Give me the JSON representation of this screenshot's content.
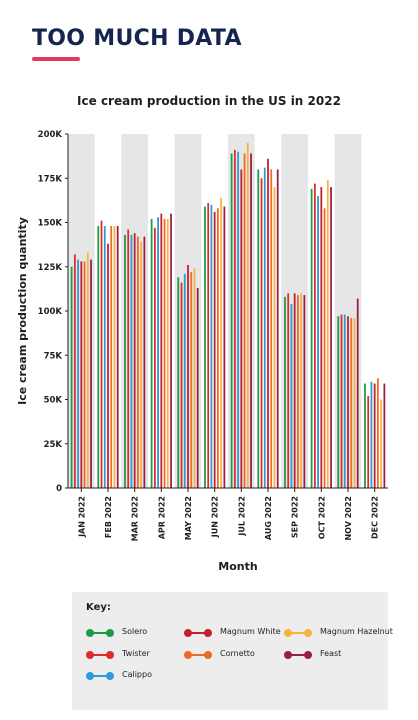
{
  "heading": "TOO MUCH DATA",
  "chart_data": {
    "type": "bar",
    "title": "Ice cream production in the US in 2022",
    "xlabel": "Month",
    "ylabel": "Ice cream production quantity",
    "ylim": [
      0,
      200000
    ],
    "ytick_labels": [
      "0",
      "25K",
      "50K",
      "75K",
      "100K",
      "125K",
      "150K",
      "175K",
      "200K"
    ],
    "yticks": [
      0,
      25000,
      50000,
      75000,
      100000,
      125000,
      150000,
      175000,
      200000
    ],
    "categories": [
      "JAN 2022",
      "FEB 2022",
      "MAR 2022",
      "APR 2022",
      "MAY 2022",
      "JUN 2022",
      "JUL 2022",
      "AUG 2022",
      "SEP 2022",
      "OCT 2022",
      "NOV 2022",
      "DEC 2022"
    ],
    "alternating_column_shading": true,
    "series": [
      {
        "name": "Solero",
        "color": "#1a9c46",
        "values": [
          125000,
          148000,
          143000,
          152000,
          119000,
          159000,
          189000,
          180000,
          108000,
          169000,
          97000,
          59000
        ]
      },
      {
        "name": "Twister",
        "color": "#e02b2b",
        "values": [
          132000,
          151000,
          146000,
          147000,
          116000,
          161000,
          191000,
          175000,
          110000,
          172000,
          98000,
          52000
        ]
      },
      {
        "name": "Calippo",
        "color": "#2e9ad8",
        "values": [
          129000,
          148000,
          143000,
          153000,
          121000,
          160000,
          190000,
          181000,
          104000,
          165000,
          98000,
          60000
        ]
      },
      {
        "name": "Magnum White",
        "color": "#c4202c",
        "values": [
          128000,
          138000,
          144000,
          155000,
          126000,
          156000,
          180000,
          186000,
          110000,
          170000,
          97000,
          59000
        ]
      },
      {
        "name": "Cornetto",
        "color": "#ee6a2b",
        "values": [
          128000,
          148000,
          142000,
          152000,
          122000,
          158000,
          189000,
          180000,
          109000,
          158000,
          96000,
          62000
        ]
      },
      {
        "name": "Magnum Hazelnut",
        "color": "#f7b23b",
        "values": [
          133000,
          148000,
          139000,
          152000,
          124000,
          164000,
          195000,
          170000,
          110000,
          174000,
          96000,
          50000
        ]
      },
      {
        "name": "Feast",
        "color": "#9c1c4a",
        "values": [
          129000,
          148000,
          142000,
          155000,
          113000,
          159000,
          189000,
          180000,
          109000,
          170000,
          107000,
          59000
        ]
      }
    ]
  },
  "key": {
    "title": "Key:",
    "items": [
      "Solero",
      "Magnum White",
      "Magnum Hazelnut",
      "Twister",
      "Cornetto",
      "Feast",
      "Calippo"
    ]
  }
}
